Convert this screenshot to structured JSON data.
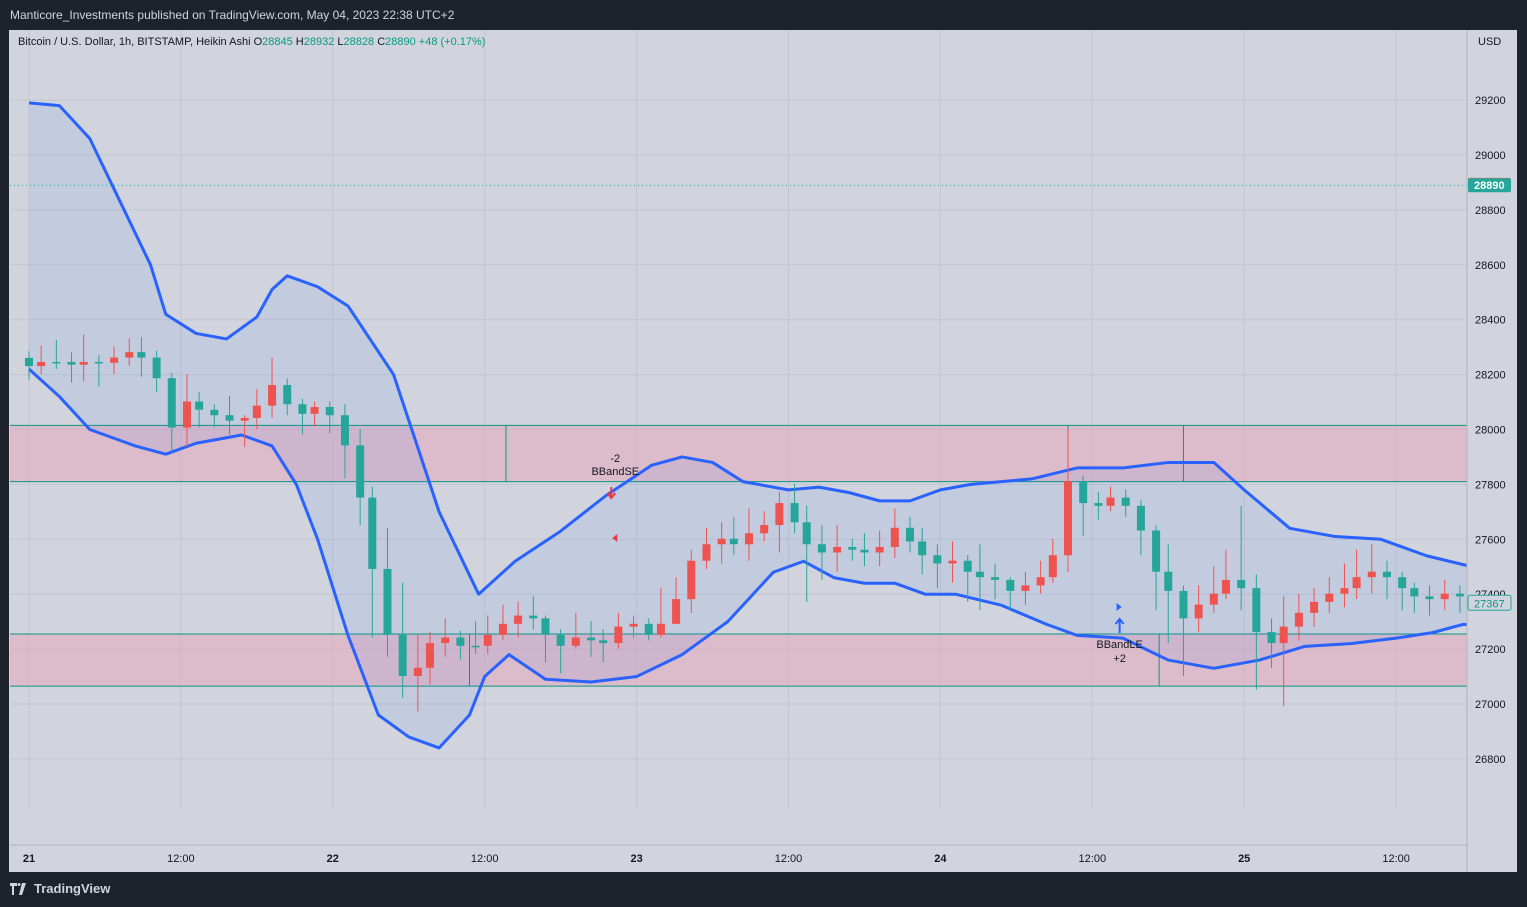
{
  "header": {
    "published_text": "Manticore_Investments published on TradingView.com, May 04, 2023 22:38 UTC+2"
  },
  "footer": {
    "logo_text": "TradingView"
  },
  "legend": {
    "symbol": "Bitcoin / U.S. Dollar, 1h, BITSTAMP, Heikin Ashi",
    "o_label": "O",
    "o_value": "28845",
    "h_label": "H",
    "h_value": "28932",
    "l_label": "L",
    "l_value": "28828",
    "c_label": "C",
    "c_value": "28890",
    "change": "+48 (+0.17%)"
  },
  "chart_data": {
    "type": "candlestick",
    "currency_label": "USD",
    "y_ticks": [
      "26800",
      "27000",
      "27200",
      "27400",
      "27600",
      "27800",
      "28000",
      "28200",
      "28400",
      "28600",
      "28800",
      "29000",
      "29200"
    ],
    "x_ticks": [
      "21",
      "12:00",
      "22",
      "12:00",
      "23",
      "12:00",
      "24",
      "12:00",
      "25",
      "12:00"
    ],
    "ylim": [
      26620,
      29330
    ],
    "price_labels": {
      "high": "28891",
      "last": "28890",
      "current": "27367"
    },
    "colors": {
      "up": "#26a69a",
      "down": "#ef5350",
      "band": "#2962ff",
      "zone_fill": "#e8a0b4",
      "zone_line": "#089981"
    },
    "zones": [
      {
        "low": 27810,
        "high": 28015
      },
      {
        "low": 27065,
        "high": 27255
      }
    ],
    "signals": [
      {
        "label_line1": "-2",
        "label_line2": "BBandSE",
        "direction": "down",
        "time": 22.92
      },
      {
        "label_line1": "BBandLE",
        "label_line2": "+2",
        "direction": "up",
        "time": 24.58
      }
    ],
    "upper_band": [
      [
        21.0,
        29190
      ],
      [
        21.1,
        29180
      ],
      [
        21.2,
        29060
      ],
      [
        21.3,
        28830
      ],
      [
        21.4,
        28600
      ],
      [
        21.45,
        28420
      ],
      [
        21.55,
        28350
      ],
      [
        21.65,
        28330
      ],
      [
        21.75,
        28410
      ],
      [
        21.8,
        28510
      ],
      [
        21.85,
        28560
      ],
      [
        21.95,
        28520
      ],
      [
        22.05,
        28450
      ],
      [
        22.2,
        28200
      ],
      [
        22.35,
        27700
      ],
      [
        22.48,
        27400
      ],
      [
        22.6,
        27520
      ],
      [
        22.75,
        27630
      ],
      [
        22.9,
        27760
      ],
      [
        23.05,
        27870
      ],
      [
        23.15,
        27900
      ],
      [
        23.25,
        27880
      ],
      [
        23.35,
        27810
      ],
      [
        23.5,
        27780
      ],
      [
        23.6,
        27790
      ],
      [
        23.7,
        27770
      ],
      [
        23.8,
        27740
      ],
      [
        23.9,
        27740
      ],
      [
        24.0,
        27780
      ],
      [
        24.1,
        27800
      ],
      [
        24.3,
        27820
      ],
      [
        24.45,
        27860
      ],
      [
        24.6,
        27860
      ],
      [
        24.75,
        27880
      ],
      [
        24.9,
        27880
      ],
      [
        25.0,
        27780
      ],
      [
        25.15,
        27640
      ],
      [
        25.3,
        27610
      ],
      [
        25.45,
        27600
      ],
      [
        25.6,
        27540
      ],
      [
        25.75,
        27500
      ],
      [
        25.85,
        27500
      ]
    ],
    "lower_band": [
      [
        21.0,
        28220
      ],
      [
        21.1,
        28120
      ],
      [
        21.2,
        28000
      ],
      [
        21.35,
        27940
      ],
      [
        21.45,
        27910
      ],
      [
        21.55,
        27950
      ],
      [
        21.7,
        27980
      ],
      [
        21.8,
        27940
      ],
      [
        21.88,
        27800
      ],
      [
        21.95,
        27600
      ],
      [
        22.05,
        27250
      ],
      [
        22.15,
        26960
      ],
      [
        22.25,
        26880
      ],
      [
        22.35,
        26840
      ],
      [
        22.45,
        26960
      ],
      [
        22.5,
        27100
      ],
      [
        22.58,
        27180
      ],
      [
        22.7,
        27090
      ],
      [
        22.85,
        27080
      ],
      [
        23.0,
        27100
      ],
      [
        23.15,
        27180
      ],
      [
        23.3,
        27300
      ],
      [
        23.45,
        27480
      ],
      [
        23.55,
        27520
      ],
      [
        23.65,
        27460
      ],
      [
        23.75,
        27440
      ],
      [
        23.85,
        27440
      ],
      [
        23.95,
        27400
      ],
      [
        24.05,
        27400
      ],
      [
        24.2,
        27360
      ],
      [
        24.35,
        27290
      ],
      [
        24.45,
        27250
      ],
      [
        24.6,
        27240
      ],
      [
        24.75,
        27160
      ],
      [
        24.9,
        27130
      ],
      [
        25.05,
        27160
      ],
      [
        25.2,
        27210
      ],
      [
        25.35,
        27220
      ],
      [
        25.5,
        27240
      ],
      [
        25.62,
        27260
      ],
      [
        25.72,
        27290
      ],
      [
        25.85,
        27280
      ]
    ],
    "candles": [
      [
        21.0,
        28231,
        28261,
        28285,
        28180
      ],
      [
        21.04,
        28246,
        28231,
        28306,
        28201
      ],
      [
        21.09,
        28246,
        28246,
        28326,
        28221
      ],
      [
        21.14,
        28236,
        28246,
        28281,
        28171
      ],
      [
        21.18,
        28246,
        28236,
        28346,
        28176
      ],
      [
        21.23,
        28243,
        28246,
        28271,
        28156
      ],
      [
        21.28,
        28262,
        28243,
        28302,
        28202
      ],
      [
        21.33,
        28282,
        28262,
        28332,
        28232
      ],
      [
        21.37,
        28262,
        28282,
        28337,
        28192
      ],
      [
        21.42,
        28187,
        28262,
        28287,
        28137
      ],
      [
        21.47,
        28007,
        28187,
        28207,
        27917
      ],
      [
        21.52,
        28102,
        28007,
        28202,
        27937
      ],
      [
        21.56,
        28072,
        28102,
        28137,
        28007
      ],
      [
        21.61,
        28052,
        28072,
        28092,
        28007
      ],
      [
        21.66,
        28032,
        28052,
        28122,
        27982
      ],
      [
        21.71,
        28042,
        28032,
        28052,
        27937
      ],
      [
        21.75,
        28087,
        28042,
        28147,
        28002
      ],
      [
        21.8,
        28162,
        28087,
        28262,
        28042
      ],
      [
        21.85,
        28092,
        28162,
        28187,
        28052
      ],
      [
        21.9,
        28057,
        28092,
        28112,
        27982
      ],
      [
        21.94,
        28082,
        28057,
        28102,
        28012
      ],
      [
        21.99,
        28052,
        28082,
        28102,
        27987
      ],
      [
        22.04,
        27942,
        28052,
        28092,
        27822
      ],
      [
        22.09,
        27752,
        27942,
        28002,
        27652
      ],
      [
        22.13,
        27492,
        27752,
        27792,
        27242
      ],
      [
        22.18,
        27252,
        27492,
        27642,
        27172
      ],
      [
        22.23,
        27102,
        27252,
        27442,
        27022
      ],
      [
        22.28,
        27132,
        27102,
        27252,
        26972
      ],
      [
        22.32,
        27222,
        27132,
        27262,
        27072
      ],
      [
        22.37,
        27242,
        27222,
        27312,
        27172
      ],
      [
        22.42,
        27212,
        27242,
        27267,
        27162
      ],
      [
        22.47,
        27212,
        27212,
        27302,
        27182
      ],
      [
        22.51,
        27252,
        27212,
        27322,
        27182
      ],
      [
        22.56,
        27292,
        27252,
        27362,
        27232
      ],
      [
        22.61,
        27322,
        27292,
        27372,
        27242
      ],
      [
        22.66,
        27312,
        27322,
        27392,
        27272
      ],
      [
        22.7,
        27252,
        27312,
        27322,
        27152
      ],
      [
        22.75,
        27212,
        27252,
        27272,
        27112
      ],
      [
        22.8,
        27242,
        27212,
        27332,
        27202
      ],
      [
        22.85,
        27232,
        27242,
        27302,
        27172
      ],
      [
        22.89,
        27222,
        27232,
        27272,
        27152
      ],
      [
        22.94,
        27282,
        27222,
        27332,
        27202
      ],
      [
        22.99,
        27292,
        27282,
        27322,
        27242
      ],
      [
        23.04,
        27252,
        27292,
        27312,
        27232
      ],
      [
        23.08,
        27292,
        27252,
        27422,
        27242
      ],
      [
        23.13,
        27382,
        27292,
        27462,
        27312
      ],
      [
        23.18,
        27522,
        27382,
        27562,
        27332
      ],
      [
        23.23,
        27582,
        27522,
        27642,
        27492
      ],
      [
        23.28,
        27602,
        27582,
        27662,
        27512
      ],
      [
        23.32,
        27582,
        27602,
        27682,
        27542
      ],
      [
        23.37,
        27622,
        27582,
        27712,
        27522
      ],
      [
        23.42,
        27652,
        27622,
        27702,
        27592
      ],
      [
        23.47,
        27732,
        27652,
        27772,
        27552
      ],
      [
        23.52,
        27662,
        27732,
        27802,
        27622
      ],
      [
        23.56,
        27582,
        27662,
        27722,
        27372
      ],
      [
        23.61,
        27552,
        27582,
        27652,
        27452
      ],
      [
        23.66,
        27572,
        27552,
        27652,
        27482
      ],
      [
        23.71,
        27562,
        27572,
        27602,
        27522
      ],
      [
        23.75,
        27552,
        27562,
        27622,
        27502
      ],
      [
        23.8,
        27572,
        27552,
        27632,
        27502
      ],
      [
        23.85,
        27642,
        27572,
        27712,
        27532
      ],
      [
        23.9,
        27592,
        27642,
        27682,
        27552
      ],
      [
        23.94,
        27542,
        27592,
        27642,
        27472
      ],
      [
        23.99,
        27512,
        27542,
        27582,
        27422
      ],
      [
        24.04,
        27522,
        27512,
        27592,
        27442
      ],
      [
        24.09,
        27482,
        27522,
        27542,
        27372
      ],
      [
        24.13,
        27462,
        27482,
        27582,
        27342
      ],
      [
        24.18,
        27452,
        27462,
        27512,
        27382
      ],
      [
        24.23,
        27412,
        27452,
        27462,
        27342
      ],
      [
        24.28,
        27432,
        27412,
        27482,
        27362
      ],
      [
        24.33,
        27462,
        27432,
        27522,
        27402
      ],
      [
        24.37,
        27542,
        27462,
        27602,
        27442
      ],
      [
        24.42,
        27812,
        27542,
        28002,
        27482
      ],
      [
        24.47,
        27732,
        27812,
        27832,
        27612
      ],
      [
        24.52,
        27722,
        27732,
        27772,
        27672
      ],
      [
        24.56,
        27752,
        27722,
        27792,
        27702
      ],
      [
        24.61,
        27722,
        27752,
        27782,
        27682
      ],
      [
        24.66,
        27632,
        27722,
        27742,
        27542
      ],
      [
        24.71,
        27482,
        27632,
        27652,
        27342
      ],
      [
        24.75,
        27412,
        27482,
        27582,
        27222
      ],
      [
        24.8,
        27312,
        27412,
        27432,
        27102
      ],
      [
        24.85,
        27362,
        27312,
        27432,
        27262
      ],
      [
        24.9,
        27402,
        27362,
        27502,
        27332
      ],
      [
        24.94,
        27452,
        27402,
        27562,
        27382
      ],
      [
        24.99,
        27422,
        27452,
        27722,
        27342
      ],
      [
        25.04,
        27262,
        27422,
        27472,
        27052
      ],
      [
        25.09,
        27222,
        27262,
        27312,
        27132
      ],
      [
        25.13,
        27282,
        27222,
        27392,
        26992
      ],
      [
        25.18,
        27332,
        27282,
        27402,
        27232
      ],
      [
        25.23,
        27372,
        27332,
        27422,
        27282
      ],
      [
        25.28,
        27402,
        27372,
        27462,
        27332
      ],
      [
        25.33,
        27422,
        27402,
        27512,
        27352
      ],
      [
        25.37,
        27462,
        27422,
        27562,
        27382
      ],
      [
        25.42,
        27482,
        27462,
        27582,
        27402
      ],
      [
        25.47,
        27462,
        27482,
        27522,
        27382
      ],
      [
        25.52,
        27422,
        27462,
        27482,
        27342
      ],
      [
        25.56,
        27392,
        27422,
        27442,
        27332
      ],
      [
        25.61,
        27382,
        27392,
        27432,
        27322
      ],
      [
        25.66,
        27402,
        27382,
        27452,
        27342
      ],
      [
        25.71,
        27392,
        27402,
        27432,
        27332
      ],
      [
        25.75,
        27352,
        27392,
        27432,
        27212
      ],
      [
        25.8,
        27362,
        27352,
        27402,
        27292
      ]
    ]
  }
}
